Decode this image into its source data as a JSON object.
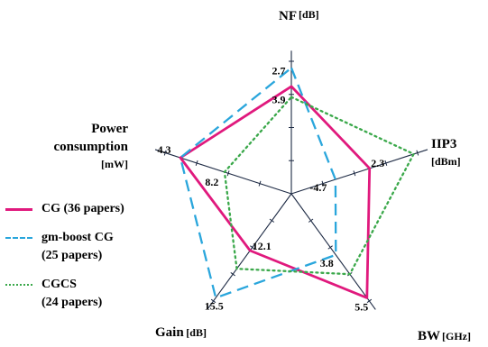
{
  "chart_data": {
    "type": "radar",
    "axes": [
      {
        "name": "NF",
        "unit": "[dB]",
        "tick_labels": [
          {
            "series": "gm-boost CG (25 papers)",
            "text": "2.7"
          },
          {
            "series": "CGCS (24 papers)",
            "text": "3.9"
          }
        ]
      },
      {
        "name": "IIP3",
        "unit": "[dBm]",
        "tick_labels": [
          {
            "series": "gm-boost CG (25 papers)",
            "text": "-4.7"
          },
          {
            "series": "CG (36 papers)",
            "text": "2.3"
          }
        ]
      },
      {
        "name": "BW",
        "unit": "[GHz]",
        "tick_labels": [
          {
            "series": "gm-boost CG (25 papers)",
            "text": "3.8"
          },
          {
            "series": "CG (36 papers)",
            "text": "5.5"
          }
        ]
      },
      {
        "name": "Gain",
        "unit": "[dB]",
        "tick_labels": [
          {
            "series": "CG (36 papers)",
            "text": "12.1"
          },
          {
            "series": "gm-boost CG (25 papers)",
            "text": "15.5"
          }
        ]
      },
      {
        "name": "Power consumption",
        "name_lines": [
          "Power",
          "consumption"
        ],
        "unit": "[mW]",
        "tick_labels": [
          {
            "series": "CG (36 papers)",
            "text": "4.3"
          },
          {
            "series": "CGCS (24 papers)",
            "text": "8.2"
          }
        ]
      }
    ],
    "axis_range": [
      0,
      1
    ],
    "series": [
      {
        "name": "CG (36 papers)",
        "name_lines": [
          "CG (36 papers)"
        ],
        "color": "#e0197d",
        "style": "solid",
        "values": [
          0.81,
          0.62,
          0.97,
          0.53,
          0.88
        ]
      },
      {
        "name": "gm-boost CG (25 papers)",
        "name_lines": [
          "gm-boost CG",
          "(25 papers)"
        ],
        "color": "#2aa6dc",
        "style": "dashed",
        "values": [
          0.95,
          0.35,
          0.57,
          0.97,
          0.88
        ]
      },
      {
        "name": "CGCS (24 papers)",
        "name_lines": [
          "CGCS",
          "(24 papers)"
        ],
        "color": "#3aa84a",
        "style": "dotted",
        "values": [
          0.73,
          0.97,
          0.75,
          0.7,
          0.53
        ]
      }
    ],
    "legend_position": "left"
  }
}
